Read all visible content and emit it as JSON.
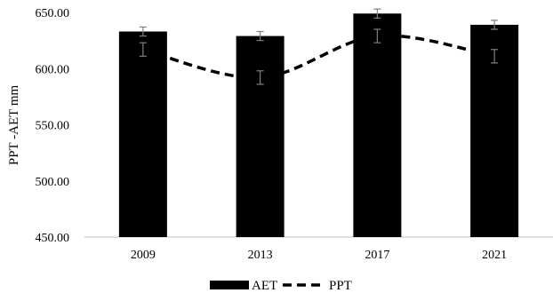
{
  "chart_data": {
    "type": "bar",
    "categories": [
      "2009",
      "2013",
      "2017",
      "2021"
    ],
    "series": [
      {
        "name": "AET",
        "kind": "bar",
        "color": "#000000",
        "values": [
          633,
          629,
          649,
          639
        ],
        "error": [
          4,
          4,
          4,
          4
        ]
      },
      {
        "name": "PPT",
        "kind": "line",
        "style": "dashed",
        "color": "#000000",
        "values": [
          617,
          592,
          629,
          611
        ],
        "error": [
          6,
          6,
          6,
          6
        ]
      }
    ],
    "ylabel": "PPT -AET mm",
    "xlabel": "",
    "ylim": [
      450,
      650
    ],
    "yticks": [
      "450.00",
      "500.00",
      "550.00",
      "600.00",
      "650.00"
    ],
    "grid": false,
    "legend_position": "bottom"
  }
}
